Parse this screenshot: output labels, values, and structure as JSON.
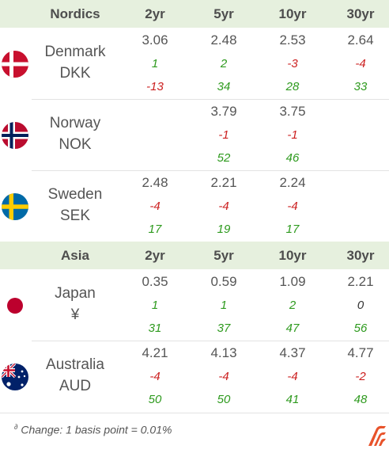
{
  "columns": [
    "2yr",
    "5yr",
    "10yr",
    "30yr"
  ],
  "sections": [
    {
      "title": "Nordics",
      "rows": [
        {
          "name": "Denmark",
          "code": "DKK",
          "flag": "denmark-flag-icon",
          "cells": [
            {
              "v": "3.06",
              "c1": "1",
              "c2": "-13"
            },
            {
              "v": "2.48",
              "c1": "2",
              "c2": "34"
            },
            {
              "v": "2.53",
              "c1": "-3",
              "c2": "28"
            },
            {
              "v": "2.64",
              "c1": "-4",
              "c2": "33"
            }
          ]
        },
        {
          "name": "Norway",
          "code": "NOK",
          "flag": "norway-flag-icon",
          "cells": [
            {
              "v": "",
              "c1": "",
              "c2": ""
            },
            {
              "v": "3.79",
              "c1": "-1",
              "c2": "52"
            },
            {
              "v": "3.75",
              "c1": "-1",
              "c2": "46"
            },
            {
              "v": "",
              "c1": "",
              "c2": ""
            }
          ]
        },
        {
          "name": "Sweden",
          "code": "SEK",
          "flag": "sweden-flag-icon",
          "cells": [
            {
              "v": "2.48",
              "c1": "-4",
              "c2": "17"
            },
            {
              "v": "2.21",
              "c1": "-4",
              "c2": "19"
            },
            {
              "v": "2.24",
              "c1": "-4",
              "c2": "17"
            },
            {
              "v": "",
              "c1": "",
              "c2": ""
            }
          ]
        }
      ]
    },
    {
      "title": "Asia",
      "rows": [
        {
          "name": "Japan",
          "code": "¥",
          "flag": "japan-flag-icon",
          "cells": [
            {
              "v": "0.35",
              "c1": "1",
              "c2": "31"
            },
            {
              "v": "0.59",
              "c1": "1",
              "c2": "37"
            },
            {
              "v": "1.09",
              "c1": "2",
              "c2": "47"
            },
            {
              "v": "2.21",
              "c1": "0",
              "c2": "56"
            }
          ]
        },
        {
          "name": "Australia",
          "code": "AUD",
          "flag": "australia-flag-icon",
          "cells": [
            {
              "v": "4.21",
              "c1": "-4",
              "c2": "50"
            },
            {
              "v": "4.13",
              "c1": "-4",
              "c2": "50"
            },
            {
              "v": "4.37",
              "c1": "-4",
              "c2": "41"
            },
            {
              "v": "4.77",
              "c1": "-2",
              "c2": "48"
            }
          ]
        }
      ]
    }
  ],
  "footnote": {
    "mark": "∂",
    "text": "Change: 1 basis point = 0.01%"
  },
  "colors": {
    "header_bg": "#e6f0de",
    "positive": "#2e9a1e",
    "negative": "#cc2020"
  },
  "logo": "brand-logo-icon"
}
